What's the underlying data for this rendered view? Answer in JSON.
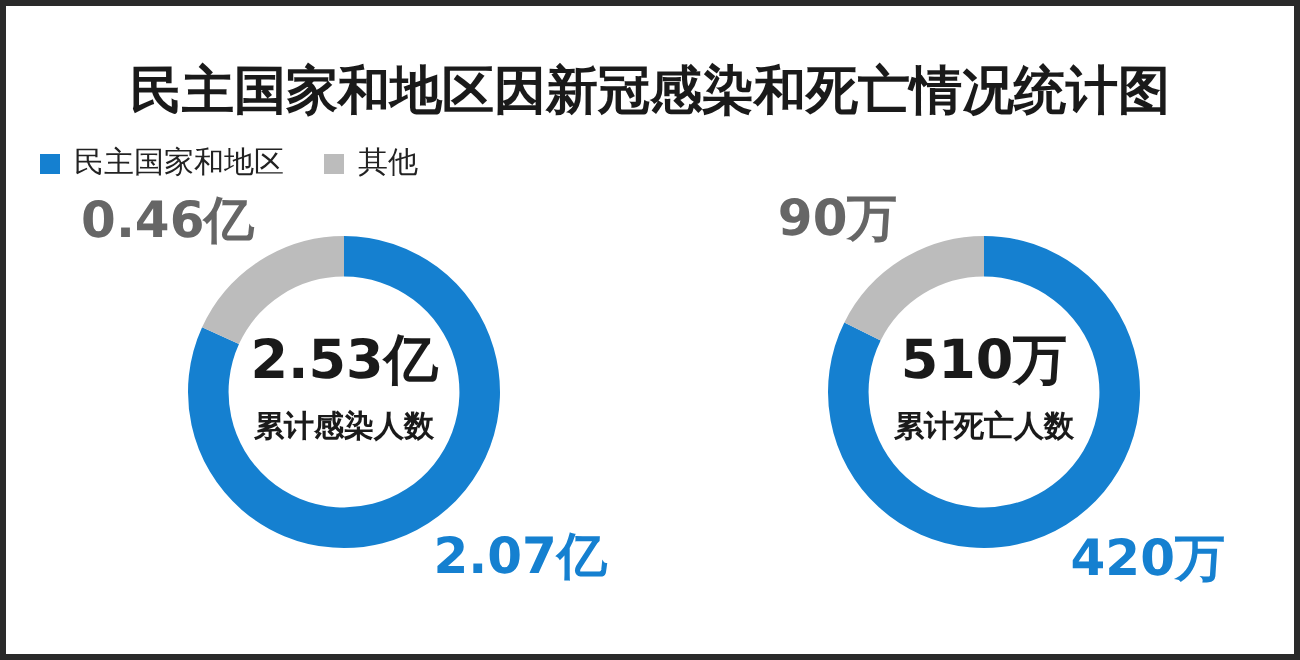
{
  "chart_data": [
    {
      "type": "donut",
      "title": "民主国家和地区因新冠感染和死亡情况统计图",
      "categories": [
        "民主国家和地区",
        "其他"
      ],
      "values": [
        2.07,
        0.46
      ],
      "colors": [
        "#1580d0",
        "#bcbcbc"
      ],
      "value_labels": [
        "2.07亿",
        "0.46亿"
      ],
      "annotations": [
        "2.53亿",
        "累计感染人数"
      ],
      "legend": "top left"
    },
    {
      "type": "donut",
      "categories": [
        null,
        null
      ],
      "values": [
        420,
        90
      ],
      "colors": [
        "#1580d0",
        "#bcbcbc"
      ],
      "value_labels": [
        "420万",
        "90万"
      ],
      "annotations": [
        "510万",
        "累计死亡人数"
      ]
    }
  ]
}
